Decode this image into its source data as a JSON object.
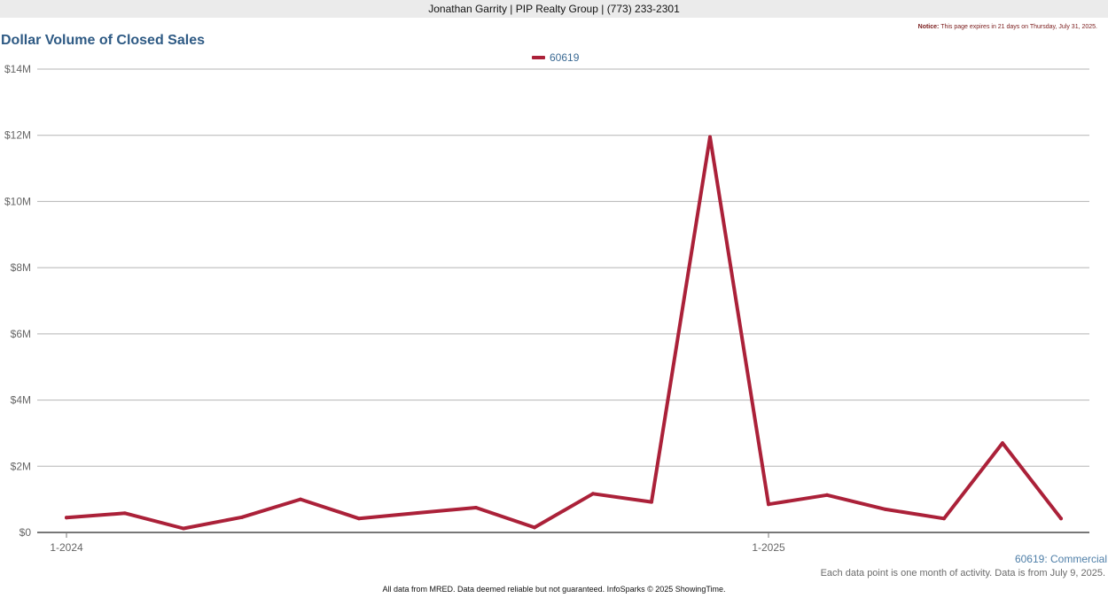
{
  "header": {
    "agent_line": "Jonathan Garrity | PIP Realty Group | (773) 233-2301"
  },
  "notice": {
    "label": "Notice:",
    "text": "This page expires in 21 days on Thursday, July 31, 2025."
  },
  "caption": {
    "series_label": "60619: Commercial",
    "note": "Each data point is one month of activity. Data is from July 9, 2025."
  },
  "footer": {
    "text": "All data from MRED. Data deemed reliable but not guaranteed. InfoSparks © 2025 ShowingTime."
  },
  "colors": {
    "series": "#ab2139",
    "grid": "#b5b5b5",
    "axis": "#777777"
  },
  "chart_data": {
    "type": "line",
    "title": "Dollar Volume of Closed Sales",
    "legend_position": "top-center",
    "grid": true,
    "x": [
      "2024-01",
      "2024-02",
      "2024-03",
      "2024-04",
      "2024-05",
      "2024-06",
      "2024-07",
      "2024-08",
      "2024-09",
      "2024-10",
      "2024-11",
      "2024-12",
      "2025-01",
      "2025-02",
      "2025-03",
      "2025-04",
      "2025-05",
      "2025-06"
    ],
    "xtick_labels": [
      {
        "x": "2024-01",
        "label": "1-2024"
      },
      {
        "x": "2025-01",
        "label": "1-2025"
      }
    ],
    "ylim": [
      0,
      14000000
    ],
    "yticks": [
      0,
      2000000,
      4000000,
      6000000,
      8000000,
      10000000,
      12000000,
      14000000
    ],
    "ytick_labels": [
      "$0",
      "$2M",
      "$4M",
      "$6M",
      "$8M",
      "$10M",
      "$12M",
      "$14M"
    ],
    "series": [
      {
        "name": "60619",
        "values": [
          450000,
          580000,
          120000,
          460000,
          1000000,
          420000,
          590000,
          750000,
          150000,
          1170000,
          920000,
          11950000,
          850000,
          1130000,
          700000,
          420000,
          2700000,
          420000
        ]
      }
    ]
  }
}
